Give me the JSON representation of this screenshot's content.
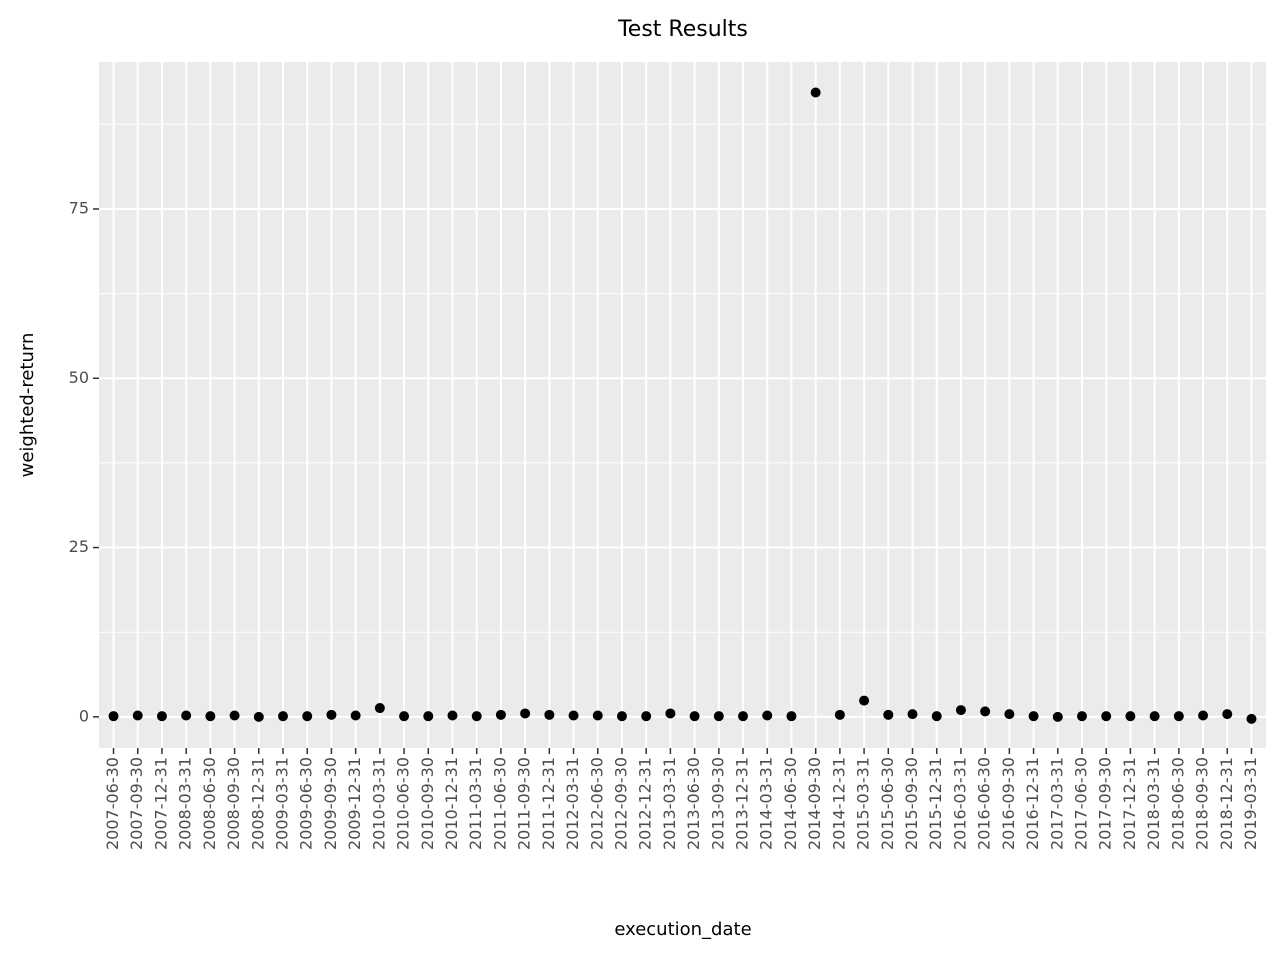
{
  "chart_data": {
    "type": "scatter",
    "title": "Test Results",
    "x_label": "execution_date",
    "y_label": "weighted-return",
    "categories": [
      "2007-06-30",
      "2007-09-30",
      "2007-12-31",
      "2008-03-31",
      "2008-06-30",
      "2008-09-30",
      "2008-12-31",
      "2009-03-31",
      "2009-06-30",
      "2009-09-30",
      "2009-12-31",
      "2010-03-31",
      "2010-06-30",
      "2010-09-30",
      "2010-12-31",
      "2011-03-31",
      "2011-06-30",
      "2011-09-30",
      "2011-12-31",
      "2012-03-31",
      "2012-06-30",
      "2012-09-30",
      "2012-12-31",
      "2013-03-31",
      "2013-06-30",
      "2013-09-30",
      "2013-12-31",
      "2014-03-31",
      "2014-06-30",
      "2014-09-30",
      "2014-12-31",
      "2015-03-31",
      "2015-06-30",
      "2015-09-30",
      "2015-12-31",
      "2016-03-31",
      "2016-06-30",
      "2016-09-30",
      "2016-12-31",
      "2017-03-31",
      "2017-06-30",
      "2017-09-30",
      "2017-12-31",
      "2018-03-31",
      "2018-06-30",
      "2018-09-30",
      "2018-12-31",
      "2019-03-31"
    ],
    "values": [
      0.1,
      0.2,
      0.1,
      0.2,
      0.1,
      0.2,
      0.0,
      0.1,
      0.1,
      0.3,
      0.2,
      1.3,
      0.1,
      0.1,
      0.2,
      0.1,
      0.3,
      0.5,
      0.3,
      0.2,
      0.2,
      0.1,
      0.1,
      0.5,
      0.1,
      0.1,
      0.1,
      0.2,
      0.1,
      92.2,
      0.3,
      2.4,
      0.3,
      0.4,
      0.1,
      1.0,
      0.8,
      0.4,
      0.1,
      0.0,
      0.1,
      0.1,
      0.1,
      0.1,
      0.1,
      0.2,
      0.4,
      -0.3
    ],
    "color": "#000000",
    "ylim": [
      -4.6,
      96.7
    ],
    "yticks": [
      0,
      25,
      50,
      75
    ],
    "grid": true
  }
}
